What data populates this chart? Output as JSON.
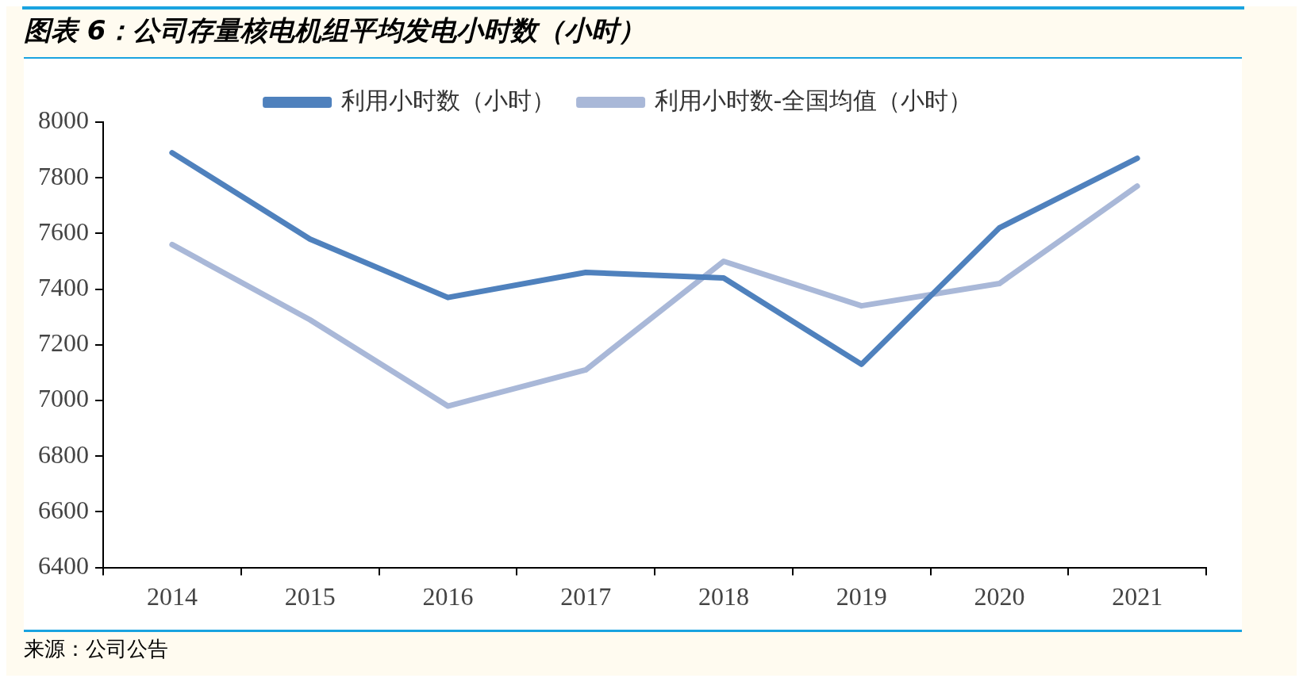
{
  "chart_data": {
    "type": "line",
    "title": "图表 6：公司存量核电机组平均发电小时数（小时）",
    "categories": [
      "2014",
      "2015",
      "2016",
      "2017",
      "2018",
      "2019",
      "2020",
      "2021"
    ],
    "series": [
      {
        "name": "利用小时数（小时）",
        "color": "#4f81bd",
        "values": [
          7890,
          7580,
          7370,
          7460,
          7440,
          7130,
          7620,
          7870
        ]
      },
      {
        "name": "利用小时数-全国均值（小时）",
        "color": "#a9b8d8",
        "values": [
          7560,
          7290,
          6980,
          7110,
          7500,
          7340,
          7420,
          7770
        ]
      }
    ],
    "ylim": [
      6400,
      8000
    ],
    "yticks": [
      6400,
      6600,
      6800,
      7000,
      7200,
      7400,
      7600,
      7800,
      8000
    ],
    "grid": false,
    "legend": "top",
    "marker": "none",
    "line_style": "solid",
    "annotations": [
      "来源：公司公告"
    ]
  }
}
